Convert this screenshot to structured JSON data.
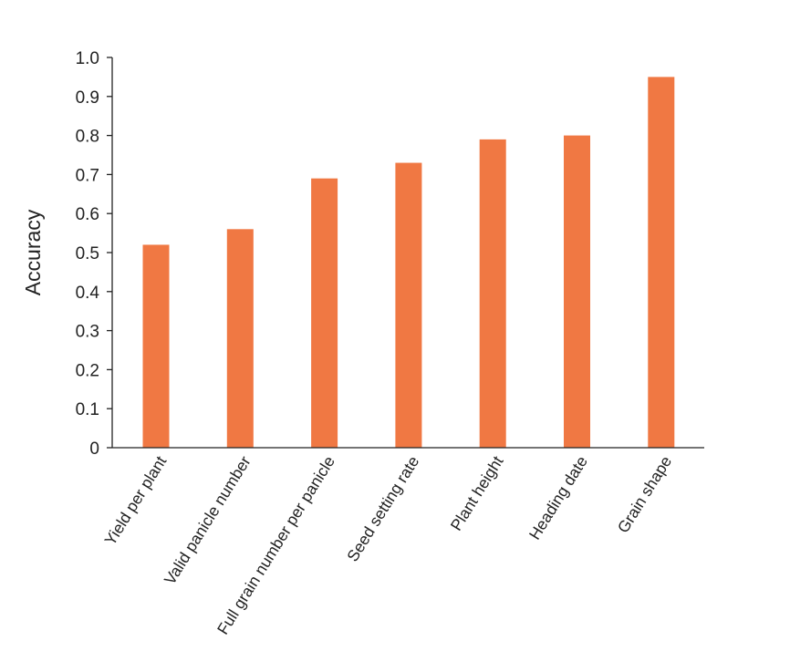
{
  "chart_data": {
    "type": "bar",
    "title": "",
    "xlabel": "",
    "ylabel": "Accuracy",
    "ylim": [
      0,
      1.0
    ],
    "yticks": [
      0,
      0.1,
      0.2,
      0.3,
      0.4,
      0.5,
      0.6,
      0.7,
      0.8,
      0.9,
      1.0
    ],
    "ytick_labels": [
      "0",
      "0.1",
      "0.2",
      "0.3",
      "0.4",
      "0.5",
      "0.6",
      "0.7",
      "0.8",
      "0.9",
      "1.0"
    ],
    "categories": [
      "Yield per plant",
      "Valid panicle number",
      "Full grain number per panicle",
      "Seed setting rate",
      "Plant height",
      "Heading date",
      "Grain shape"
    ],
    "values": [
      0.52,
      0.56,
      0.69,
      0.73,
      0.79,
      0.8,
      0.95
    ],
    "bar_color": "#f07843",
    "axis_color": "#222222",
    "grid": false,
    "legend": "none"
  }
}
